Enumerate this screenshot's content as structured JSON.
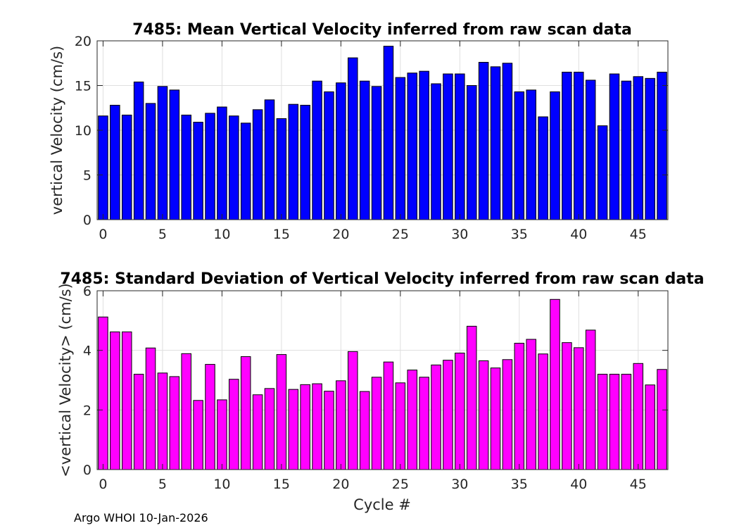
{
  "chart_data": [
    {
      "type": "bar",
      "title": "7485: Mean Vertical Velocity inferred from raw scan data",
      "xlabel": "",
      "ylabel": "vertical Velocity (cm/s)",
      "xlim": [
        -0.5,
        47.5
      ],
      "ylim": [
        0,
        20
      ],
      "xticks": [
        0,
        5,
        10,
        15,
        20,
        25,
        30,
        35,
        40,
        45
      ],
      "yticks": [
        0,
        5,
        10,
        15,
        20
      ],
      "grid": true,
      "color": "#0000ff",
      "x": [
        0,
        1,
        2,
        3,
        4,
        5,
        6,
        7,
        8,
        9,
        10,
        11,
        12,
        13,
        14,
        15,
        16,
        17,
        18,
        19,
        20,
        21,
        22,
        23,
        24,
        25,
        26,
        27,
        28,
        29,
        30,
        31,
        32,
        33,
        34,
        35,
        36,
        37,
        38,
        39,
        40,
        41,
        42,
        43,
        44,
        45,
        46,
        47
      ],
      "values": [
        11.6,
        12.8,
        11.7,
        15.4,
        13.0,
        14.9,
        14.5,
        11.7,
        10.9,
        11.9,
        12.6,
        11.6,
        10.8,
        12.3,
        13.4,
        11.3,
        12.9,
        12.8,
        15.5,
        14.3,
        15.3,
        18.1,
        15.5,
        14.9,
        19.4,
        15.9,
        16.4,
        16.6,
        15.2,
        16.3,
        16.3,
        15.0,
        17.6,
        17.1,
        17.5,
        14.3,
        14.5,
        11.5,
        14.3,
        16.5,
        16.5,
        15.6,
        10.5,
        16.3,
        15.5,
        16.0,
        15.8,
        16.5
      ]
    },
    {
      "type": "bar",
      "title": "7485: Standard Deviation of Vertical Velocity inferred from raw scan data",
      "xlabel": "Cycle #",
      "ylabel": "<vertical Velocity> (cm/s)",
      "xlim": [
        -0.5,
        47.5
      ],
      "ylim": [
        0,
        6
      ],
      "xticks": [
        0,
        5,
        10,
        15,
        20,
        25,
        30,
        35,
        40,
        45
      ],
      "yticks": [
        0,
        2,
        4,
        6
      ],
      "grid": true,
      "color": "#ff00ff",
      "x": [
        0,
        1,
        2,
        3,
        4,
        5,
        6,
        7,
        8,
        9,
        10,
        11,
        12,
        13,
        14,
        15,
        16,
        17,
        18,
        19,
        20,
        21,
        22,
        23,
        24,
        25,
        26,
        27,
        28,
        29,
        30,
        31,
        32,
        33,
        34,
        35,
        36,
        37,
        38,
        39,
        40,
        41,
        42,
        43,
        44,
        45,
        46,
        47
      ],
      "values": [
        5.12,
        4.62,
        4.62,
        3.2,
        4.08,
        3.24,
        3.12,
        3.89,
        2.32,
        3.53,
        2.34,
        3.03,
        3.79,
        2.51,
        2.72,
        3.86,
        2.69,
        2.85,
        2.88,
        2.63,
        2.98,
        3.96,
        2.62,
        3.1,
        3.61,
        2.91,
        3.34,
        3.1,
        3.51,
        3.67,
        3.91,
        4.81,
        3.65,
        3.41,
        3.69,
        4.24,
        4.37,
        3.88,
        5.71,
        4.26,
        4.09,
        4.68,
        3.2,
        3.2,
        3.2,
        3.56,
        2.84,
        3.36
      ]
    }
  ],
  "footer": {
    "text": "Argo WHOI 10-Jan-2026"
  }
}
